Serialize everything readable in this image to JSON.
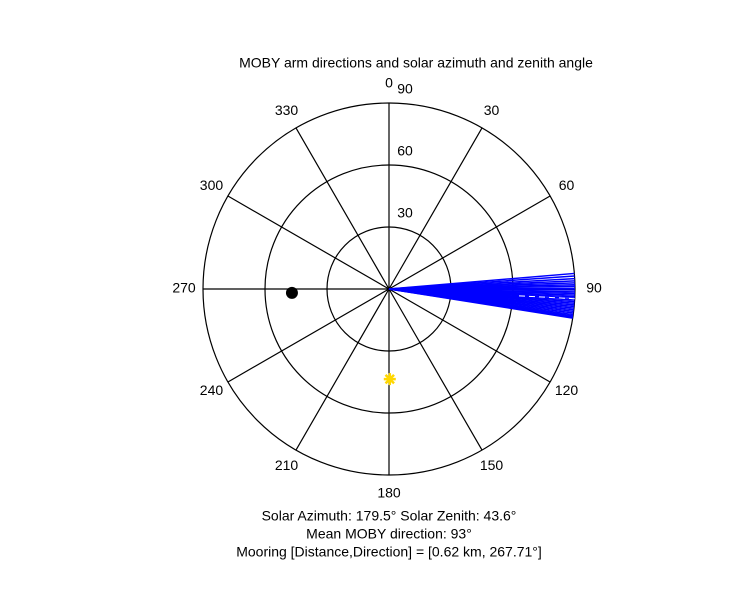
{
  "chart_data": {
    "type": "polar",
    "title": "MOBY arm directions and solar azimuth and zenith angle",
    "rlim": [
      0,
      90
    ],
    "rticks": [
      30,
      60,
      90
    ],
    "thetaticks": [
      0,
      30,
      60,
      90,
      120,
      150,
      180,
      210,
      240,
      270,
      300,
      330
    ],
    "arms": {
      "color": "#0000ff",
      "theta": [
        85.2,
        86.0,
        86.8,
        87.5,
        88.1,
        88.7,
        89.2,
        89.8,
        90.3,
        90.9,
        91.4,
        91.9,
        92.4,
        92.9,
        93.4,
        93.9,
        94.4,
        94.9,
        95.4,
        95.9,
        96.4,
        96.9,
        97.4,
        97.9,
        98.3,
        98.7,
        99.0
      ]
    },
    "mean_direction": {
      "theta": 93,
      "color": "#ffffff"
    },
    "mooring": {
      "theta": 267.71,
      "r": 47,
      "color": "#000000"
    },
    "sun": {
      "theta": 179.5,
      "r": 43.6,
      "color": "#ffd700"
    },
    "footer": [
      "Solar Azimuth: 179.5°   Solar Zenith: 43.6°",
      "Mean MOBY direction: 93°",
      "Mooring [Distance,Direction] = [0.62 km, 267.71°]"
    ]
  }
}
